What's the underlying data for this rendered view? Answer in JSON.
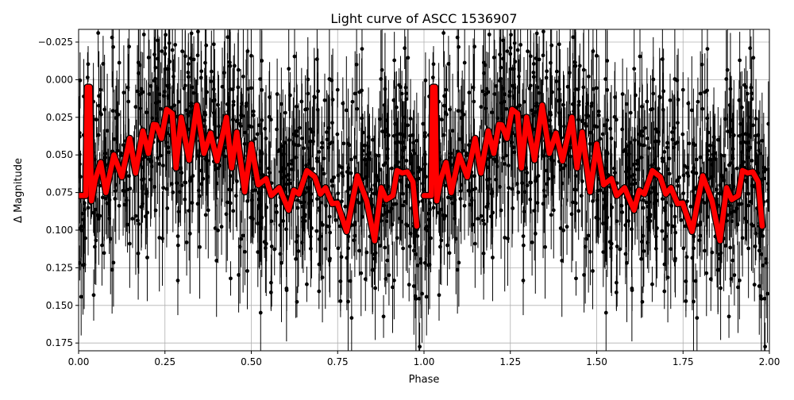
{
  "chart_data": {
    "type": "scatter",
    "title": "Light curve of ASCC 1536907",
    "xlabel": "Phase",
    "ylabel": "Δ Magnitude",
    "xlim": [
      0.0,
      2.0
    ],
    "ylim": [
      0.18,
      -0.0335
    ],
    "y_inverted": true,
    "grid": true,
    "x_ticks": [
      "0.00",
      "0.25",
      "0.50",
      "0.75",
      "1.00",
      "1.25",
      "1.50",
      "1.75",
      "2.00"
    ],
    "x_tick_values": [
      0,
      0.25,
      0.5,
      0.75,
      1.0,
      1.25,
      1.5,
      1.75,
      2.0
    ],
    "y_ticks": [
      "−0.025",
      "0.000",
      "0.025",
      "0.050",
      "0.075",
      "0.100",
      "0.125",
      "0.150",
      "0.175"
    ],
    "y_tick_values": [
      -0.025,
      0,
      0.025,
      0.05,
      0.075,
      0.1,
      0.125,
      0.15,
      0.175
    ],
    "observations": {
      "color": "#000000",
      "marker": "circle with error bars",
      "description_of_spread": "dense points between about -0.03 and 0.18 mag, repeated for phase 0-1 and 1-2"
    },
    "model": {
      "color": "#ff0000",
      "edge_color": "#000000",
      "phase": [
        0.0,
        0.021,
        0.025,
        0.032,
        0.037,
        0.048,
        0.064,
        0.079,
        0.102,
        0.125,
        0.148,
        0.165,
        0.186,
        0.202,
        0.217,
        0.225,
        0.24,
        0.255,
        0.271,
        0.282,
        0.297,
        0.32,
        0.342,
        0.363,
        0.382,
        0.401,
        0.428,
        0.443,
        0.458,
        0.481,
        0.5,
        0.52,
        0.543,
        0.558,
        0.581,
        0.608,
        0.623,
        0.638,
        0.661,
        0.684,
        0.7,
        0.715,
        0.734,
        0.749,
        0.776,
        0.807,
        0.834,
        0.857,
        0.876,
        0.891,
        0.91,
        0.922,
        0.937,
        0.952,
        0.968,
        0.979
      ],
      "magnitude": [
        0.077,
        0.077,
        0.005,
        0.005,
        0.0805,
        0.0665,
        0.055,
        0.075,
        0.05,
        0.0646,
        0.039,
        0.062,
        0.034,
        0.049,
        0.0297,
        0.03,
        0.039,
        0.0198,
        0.0225,
        0.0586,
        0.025,
        0.0534,
        0.017,
        0.049,
        0.0356,
        0.054,
        0.025,
        0.0586,
        0.0349,
        0.0745,
        0.0428,
        0.0699,
        0.0657,
        0.077,
        0.0718,
        0.0867,
        0.0735,
        0.076,
        0.0604,
        0.0646,
        0.076,
        0.0718,
        0.0824,
        0.082,
        0.1009,
        0.0639,
        0.0805,
        0.107,
        0.0718,
        0.0797,
        0.077,
        0.0604,
        0.062,
        0.0613,
        0.068,
        0.0973
      ]
    }
  }
}
